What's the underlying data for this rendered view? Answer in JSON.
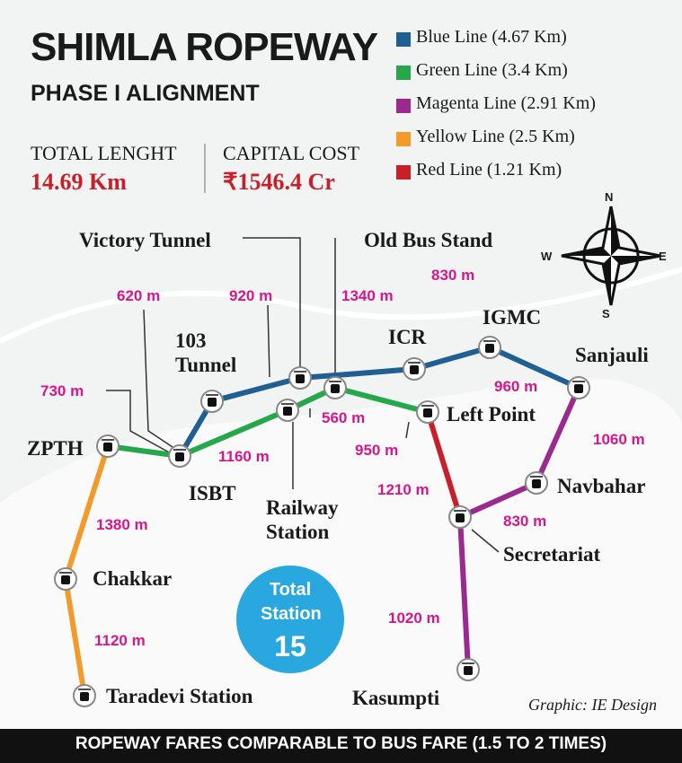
{
  "header": {
    "title": "SHIMLA ROPEWAY",
    "subtitle": "PHASE I ALIGNMENT"
  },
  "stats": [
    {
      "label": "TOTAL LENGHT",
      "value": "14.69 Km"
    },
    {
      "label": "CAPITAL COST",
      "value": "₹1546.4 Cr"
    }
  ],
  "legend": [
    {
      "name": "Blue Line (4.67 Km)",
      "color": "#1f5f94"
    },
    {
      "name": "Green Line (3.4 Km)",
      "color": "#25a84b"
    },
    {
      "name": "Magenta Line (2.91 Km)",
      "color": "#9b2a8f"
    },
    {
      "name": "Yellow Line (2.5 Km)",
      "color": "#f39a2b"
    },
    {
      "name": "Red Line (1.21 Km)",
      "color": "#c8202a"
    }
  ],
  "stations": [
    "ZPTH",
    "ISBT",
    "103 Tunnel",
    "Victory Tunnel",
    "Railway Station",
    "Old Bus Stand",
    "ICR",
    "IGMC",
    "Sanjauli",
    "Left Point",
    "Navbahar",
    "Secretariat",
    "Kasumpti",
    "Chakkar",
    "Taradevi Station"
  ],
  "distances": [
    "620 m",
    "920 m",
    "1340 m",
    "830 m",
    "730 m",
    "560 m",
    "960 m",
    "950 m",
    "1160 m",
    "1060 m",
    "1210 m",
    "830 m",
    "1380 m",
    "1020 m",
    "1120 m"
  ],
  "compass": {
    "north": "N",
    "east": "E",
    "south": "S",
    "west": "W"
  },
  "total": {
    "label": "Total Station",
    "value": "15"
  },
  "credit": "Graphic: IE Design",
  "footer": "ROPEWAY FARES COMPARABLE TO BUS FARE (1.5 TO 2 TIMES)"
}
